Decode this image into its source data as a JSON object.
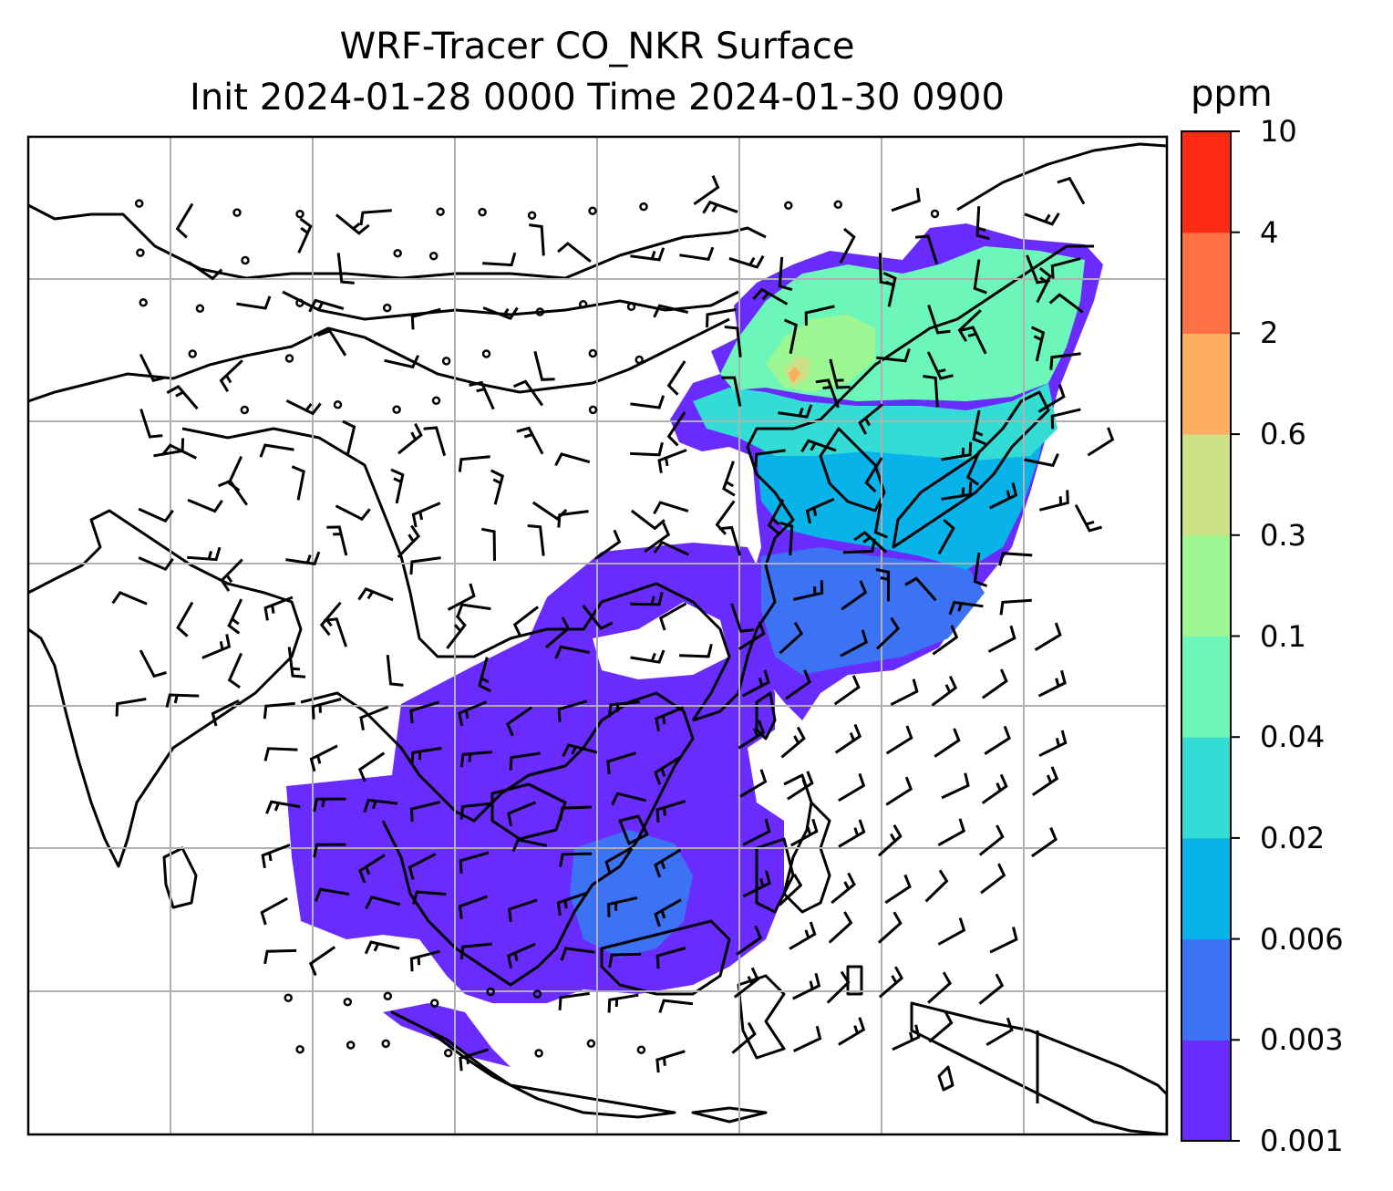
{
  "title_line1": "WRF-Tracer CO_NKR Surface",
  "title_line2": "Init 2024-01-28 0000 Time 2024-01-30 0900",
  "colorbar": {
    "unit": "ppm",
    "levels": [
      "0.001",
      "0.003",
      "0.006",
      "0.02",
      "0.04",
      "0.1",
      "0.3",
      "0.6",
      "2",
      "4",
      "10"
    ],
    "colors": [
      "#6a2bff",
      "#3b73f4",
      "#07b3e9",
      "#34dcd6",
      "#6cf6b9",
      "#9cf793",
      "#cde083",
      "#fdae61",
      "#ff7043",
      "#ff2a14"
    ]
  },
  "map": {
    "projection": "Mercator",
    "gridlines": true,
    "coastline_color": "#000000",
    "gridline_color": "#b0b0b0",
    "wind_barbs": true
  }
}
